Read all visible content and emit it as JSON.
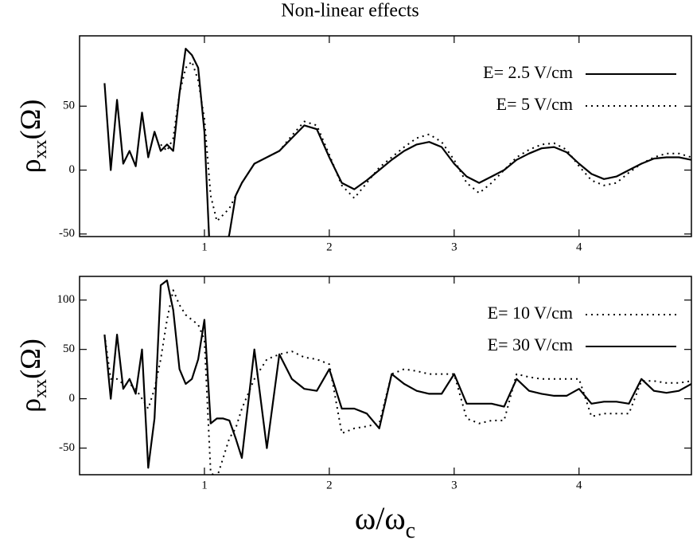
{
  "chart_data": [
    {
      "type": "line",
      "title": "Non-linear effects",
      "y_label": [
        "ρ",
        "xx",
        "(Ω)"
      ],
      "x": [
        0.2,
        0.25,
        0.3,
        0.35,
        0.4,
        0.45,
        0.5,
        0.55,
        0.6,
        0.65,
        0.7,
        0.75,
        0.8,
        0.85,
        0.9,
        0.95,
        1.0,
        1.05,
        1.1,
        1.15,
        1.2,
        1.25,
        1.3,
        1.4,
        1.5,
        1.6,
        1.7,
        1.8,
        1.9,
        2.0,
        2.1,
        2.2,
        2.3,
        2.4,
        2.5,
        2.6,
        2.7,
        2.8,
        2.9,
        3.0,
        3.1,
        3.2,
        3.3,
        3.4,
        3.5,
        3.6,
        3.7,
        3.8,
        3.9,
        4.0,
        4.1,
        4.2,
        4.3,
        4.4,
        4.5,
        4.6,
        4.7,
        4.8,
        4.9
      ],
      "series": [
        {
          "name": "E= 2.5 V/cm",
          "color": "#000000",
          "dash": "solid",
          "values": [
            68,
            0,
            55,
            5,
            15,
            3,
            45,
            10,
            30,
            15,
            20,
            15,
            60,
            95,
            90,
            80,
            30,
            -80,
            -90,
            -70,
            -50,
            -20,
            -10,
            5,
            10,
            15,
            25,
            35,
            32,
            10,
            -10,
            -15,
            -8,
            0,
            8,
            15,
            20,
            22,
            18,
            5,
            -5,
            -10,
            -5,
            0,
            8,
            13,
            17,
            18,
            14,
            5,
            -3,
            -7,
            -5,
            0,
            5,
            9,
            10,
            10,
            8
          ]
        },
        {
          "name": "E= 5 V/cm",
          "color": "#000000",
          "dash": "dotted",
          "values": [
            null,
            null,
            null,
            null,
            null,
            null,
            null,
            null,
            null,
            20,
            15,
            25,
            60,
            80,
            85,
            70,
            40,
            -20,
            -40,
            -35,
            -30,
            -20,
            -10,
            5,
            10,
            15,
            27,
            38,
            35,
            12,
            -12,
            -22,
            -10,
            2,
            10,
            18,
            25,
            28,
            22,
            8,
            -10,
            -18,
            -10,
            0,
            10,
            16,
            20,
            21,
            16,
            3,
            -8,
            -12,
            -10,
            -2,
            5,
            10,
            13,
            13,
            10
          ]
        }
      ],
      "xlim": [
        0,
        4.9
      ],
      "ylim": [
        -52,
        105
      ],
      "xticks": [
        1,
        2,
        3,
        4
      ],
      "yticks": [
        -50,
        0,
        50
      ],
      "legend": "upper right"
    },
    {
      "type": "line",
      "y_label": [
        "ρ",
        "xx",
        "(Ω)"
      ],
      "x_label": [
        "ω/ω",
        "c"
      ],
      "x": [
        0.2,
        0.25,
        0.3,
        0.35,
        0.4,
        0.45,
        0.5,
        0.55,
        0.6,
        0.65,
        0.7,
        0.75,
        0.8,
        0.85,
        0.9,
        0.95,
        1.0,
        1.05,
        1.1,
        1.15,
        1.2,
        1.25,
        1.3,
        1.4,
        1.5,
        1.6,
        1.7,
        1.8,
        1.9,
        2.0,
        2.1,
        2.2,
        2.3,
        2.4,
        2.5,
        2.6,
        2.7,
        2.8,
        2.9,
        3.0,
        3.1,
        3.2,
        3.3,
        3.4,
        3.5,
        3.6,
        3.7,
        3.8,
        3.9,
        4.0,
        4.1,
        4.2,
        4.3,
        4.4,
        4.5,
        4.6,
        4.7,
        4.8,
        4.9
      ],
      "series": [
        {
          "name": "E= 10 V/cm",
          "color": "#000000",
          "dash": "dotted",
          "values": [
            65,
            20,
            20,
            15,
            15,
            10,
            0,
            -10,
            10,
            40,
            80,
            110,
            95,
            85,
            80,
            75,
            60,
            -75,
            -80,
            -60,
            -40,
            -30,
            -10,
            20,
            40,
            45,
            48,
            42,
            40,
            35,
            -35,
            -30,
            -28,
            -25,
            25,
            30,
            28,
            25,
            25,
            25,
            -20,
            -25,
            -22,
            -22,
            25,
            22,
            20,
            20,
            20,
            20,
            -18,
            -15,
            -15,
            -15,
            18,
            18,
            16,
            16,
            18
          ]
        },
        {
          "name": "E= 30 V/cm",
          "color": "#000000",
          "dash": "solid",
          "values": [
            65,
            0,
            65,
            10,
            20,
            5,
            50,
            -70,
            -20,
            115,
            120,
            90,
            30,
            15,
            20,
            40,
            80,
            -25,
            -20,
            -20,
            -22,
            -40,
            -60,
            50,
            -50,
            45,
            20,
            10,
            8,
            30,
            -10,
            -10,
            -15,
            -30,
            25,
            15,
            8,
            5,
            5,
            25,
            -5,
            -5,
            -5,
            -8,
            20,
            8,
            5,
            3,
            3,
            10,
            -5,
            -3,
            -3,
            -5,
            20,
            8,
            6,
            8,
            15
          ]
        }
      ],
      "xlim": [
        0,
        4.9
      ],
      "ylim": [
        -77,
        124
      ],
      "xticks": [
        1,
        2,
        3,
        4
      ],
      "yticks": [
        -50,
        0,
        50,
        100
      ],
      "legend": "upper right"
    }
  ]
}
